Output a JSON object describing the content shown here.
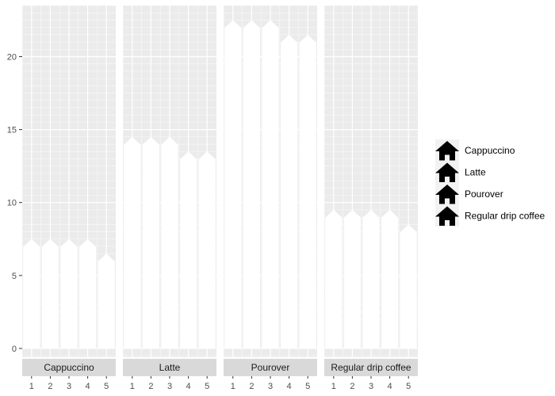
{
  "chart_data": {
    "type": "bar",
    "subtype": "faceted-pictogram",
    "title": "",
    "xlabel": "",
    "ylabel": "",
    "facets": [
      "Cappuccino",
      "Latte",
      "Pourover",
      "Regular drip coffee"
    ],
    "x": [
      "1",
      "2",
      "3",
      "4",
      "5"
    ],
    "series": [
      {
        "values": [
          7.5,
          7.5,
          7.5,
          7.5,
          6.5
        ]
      },
      {
        "values": [
          14.5,
          14.5,
          14.5,
          13.5,
          13.5
        ]
      },
      {
        "values": [
          22.5,
          22.5,
          22.5,
          21.5,
          21.5
        ]
      },
      {
        "values": [
          9.5,
          9.5,
          9.5,
          9.5,
          8.5
        ]
      }
    ],
    "ylim": [
      -0.6,
      23.5
    ],
    "y_ticks": [
      "0",
      "5",
      "10",
      "15",
      "20"
    ],
    "grid": true,
    "legend": {
      "placement": "right",
      "icon": "house-icon",
      "entries": [
        "Cappuccino",
        "Latte",
        "Pourover",
        "Regular drip coffee"
      ]
    },
    "colors": {
      "panel": "#ebebeb",
      "grid": "#ffffff",
      "fill": "#ffffff",
      "strip": "#d9d9d9",
      "legend_icon": "#000000"
    }
  }
}
